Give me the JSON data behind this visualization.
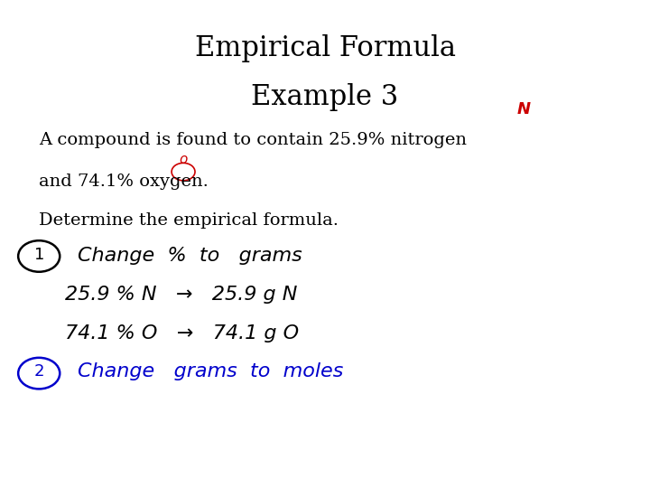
{
  "title_line1": "Empirical Formula",
  "title_line2": "Example 3",
  "body_line1": "A compound is found to contain 25.9% nitrogen",
  "body_line2": "and 74.1% oxygen.",
  "body_line3": "Determine the empirical formula.",
  "step1_label": "①",
  "step1_text": "Change % to grams",
  "step2_n": "25.9 % N  →  25.9 g N",
  "step2_o": "74.1 % O  →  74.1 g O",
  "step3_label": "②",
  "step3_text": "Change grams to moles",
  "bg_color": "#ffffff",
  "title_color": "#000000",
  "body_color": "#000000",
  "handwrite_black_color": "#000000",
  "handwrite_blue_color": "#0000cc",
  "red_color": "#cc0000",
  "title_fontsize": 22,
  "body_fontsize": 14,
  "handwrite_fontsize": 16
}
